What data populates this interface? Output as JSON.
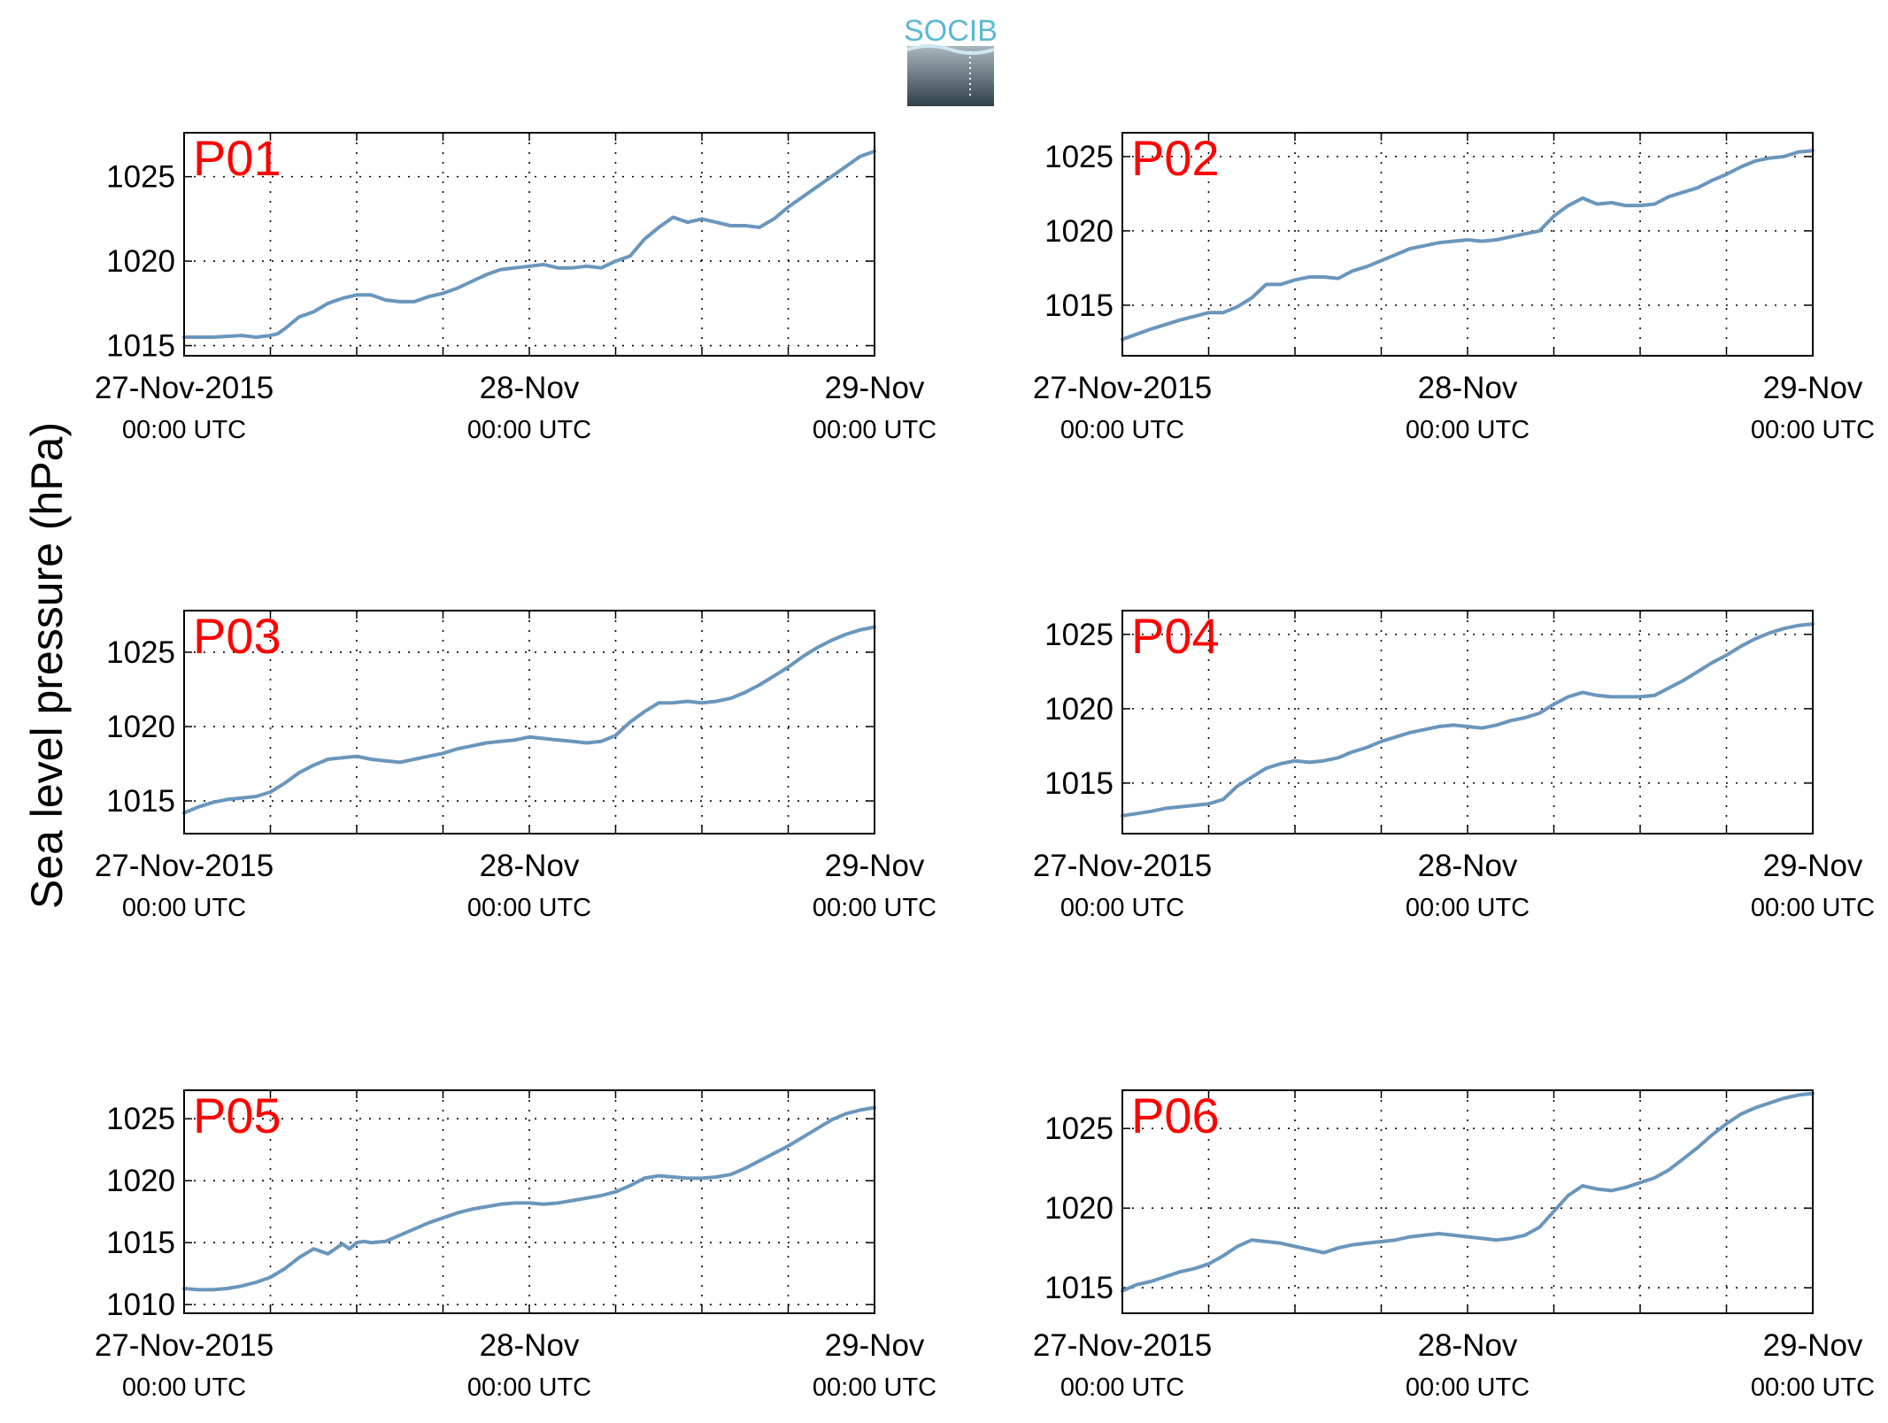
{
  "figure": {
    "ylabel": "Sea level pressure (hPa)",
    "logo_text": "SOCIB",
    "colors": {
      "line": "#6A96BC",
      "panel_label": "#FF0000",
      "axis": "#000000",
      "grid": "#000000",
      "logo_text": "#5BB8D4",
      "logo_top": "#A9B6BE",
      "logo_bottom": "#2F3F48"
    },
    "x_ticks": [
      {
        "x": 0,
        "date": "27-Nov-2015",
        "time": "00:00 UTC"
      },
      {
        "x": 24,
        "date": "28-Nov",
        "time": "00:00 UTC"
      },
      {
        "x": 48,
        "date": "29-Nov",
        "time": "00:00 UTC"
      }
    ],
    "x_minor_ticks": [
      6,
      12,
      18,
      30,
      36,
      42
    ]
  },
  "chart_data": [
    {
      "type": "line",
      "panel_label": "P01",
      "x_units": "hours since 27-Nov-2015 00:00 UTC",
      "xlim": [
        0,
        48
      ],
      "ylim": [
        1014.4,
        1027.6
      ],
      "yticks": [
        1015,
        1020,
        1025
      ],
      "series": [
        {
          "x": [
            0,
            2,
            4,
            5,
            6,
            6.5,
            7,
            8,
            9,
            10,
            11,
            12,
            13,
            14,
            15,
            16,
            17,
            18,
            19,
            20,
            21,
            22,
            23,
            24,
            25,
            26,
            27,
            28,
            29,
            30,
            31,
            32,
            33,
            34,
            35,
            36,
            37,
            38,
            39,
            40,
            41,
            42,
            43,
            44,
            45,
            46,
            47,
            48
          ],
          "values": [
            1015.5,
            1015.5,
            1015.6,
            1015.5,
            1015.6,
            1015.7,
            1016.0,
            1016.7,
            1017.0,
            1017.5,
            1017.8,
            1018.0,
            1018.0,
            1017.7,
            1017.6,
            1017.6,
            1017.9,
            1018.1,
            1018.4,
            1018.8,
            1019.2,
            1019.5,
            1019.6,
            1019.7,
            1019.8,
            1019.6,
            1019.6,
            1019.7,
            1019.6,
            1020.0,
            1020.3,
            1021.3,
            1022.0,
            1022.6,
            1022.3,
            1022.5,
            1022.3,
            1022.1,
            1022.1,
            1022.0,
            1022.5,
            1023.2,
            1023.8,
            1024.4,
            1025.0,
            1025.6,
            1026.2,
            1026.5
          ]
        }
      ]
    },
    {
      "type": "line",
      "panel_label": "P02",
      "x_units": "hours since 27-Nov-2015 00:00 UTC",
      "xlim": [
        0,
        48
      ],
      "ylim": [
        1011.6,
        1026.6
      ],
      "yticks": [
        1015,
        1020,
        1025
      ],
      "series": [
        {
          "x": [
            0,
            2,
            4,
            6,
            7,
            8,
            9,
            10,
            11,
            12,
            13,
            14,
            15,
            16,
            17,
            18,
            19,
            20,
            21,
            22,
            23,
            24,
            25,
            26,
            27,
            28,
            29,
            30,
            31,
            32,
            33,
            34,
            35,
            36,
            37,
            38,
            39,
            40,
            41,
            42,
            43,
            44,
            45,
            46,
            47,
            48
          ],
          "values": [
            1012.7,
            1013.4,
            1014.0,
            1014.5,
            1014.5,
            1014.9,
            1015.5,
            1016.4,
            1016.4,
            1016.7,
            1016.9,
            1016.9,
            1016.8,
            1017.3,
            1017.6,
            1018.0,
            1018.4,
            1018.8,
            1019.0,
            1019.2,
            1019.3,
            1019.4,
            1019.3,
            1019.4,
            1019.6,
            1019.8,
            1020.0,
            1021.0,
            1021.7,
            1022.2,
            1021.8,
            1021.9,
            1021.7,
            1021.7,
            1021.8,
            1022.3,
            1022.6,
            1022.9,
            1023.4,
            1023.8,
            1024.3,
            1024.7,
            1024.9,
            1025.0,
            1025.3,
            1025.4
          ]
        }
      ]
    },
    {
      "type": "line",
      "panel_label": "P03",
      "x_units": "hours since 27-Nov-2015 00:00 UTC",
      "xlim": [
        0,
        48
      ],
      "ylim": [
        1012.8,
        1027.8
      ],
      "yticks": [
        1015,
        1020,
        1025
      ],
      "series": [
        {
          "x": [
            0,
            1,
            2,
            3,
            4,
            5,
            6,
            7,
            8,
            9,
            10,
            11,
            12,
            13,
            14,
            15,
            16,
            17,
            18,
            19,
            20,
            21,
            22,
            23,
            24,
            25,
            26,
            27,
            28,
            29,
            30,
            31,
            32,
            33,
            34,
            35,
            36,
            37,
            38,
            39,
            40,
            41,
            42,
            43,
            44,
            45,
            46,
            47,
            48
          ],
          "values": [
            1014.2,
            1014.6,
            1014.9,
            1015.1,
            1015.2,
            1015.3,
            1015.6,
            1016.2,
            1016.9,
            1017.4,
            1017.8,
            1017.9,
            1018.0,
            1017.8,
            1017.7,
            1017.6,
            1017.8,
            1018.0,
            1018.2,
            1018.5,
            1018.7,
            1018.9,
            1019.0,
            1019.1,
            1019.3,
            1019.2,
            1019.1,
            1019.0,
            1018.9,
            1019.0,
            1019.4,
            1020.3,
            1021.0,
            1021.6,
            1021.6,
            1021.7,
            1021.6,
            1021.7,
            1021.9,
            1022.3,
            1022.8,
            1023.4,
            1024.0,
            1024.7,
            1025.3,
            1025.8,
            1026.2,
            1026.5,
            1026.7
          ]
        }
      ]
    },
    {
      "type": "line",
      "panel_label": "P04",
      "x_units": "hours since 27-Nov-2015 00:00 UTC",
      "xlim": [
        0,
        48
      ],
      "ylim": [
        1011.6,
        1026.6
      ],
      "yticks": [
        1015,
        1020,
        1025
      ],
      "series": [
        {
          "x": [
            0,
            2,
            3,
            4,
            6,
            7,
            8,
            9,
            10,
            11,
            12,
            13,
            14,
            15,
            16,
            17,
            18,
            19,
            20,
            21,
            22,
            23,
            24,
            25,
            26,
            27,
            28,
            29,
            30,
            31,
            32,
            33,
            34,
            35,
            36,
            37,
            38,
            39,
            40,
            41,
            42,
            43,
            44,
            45,
            46,
            47,
            48
          ],
          "values": [
            1012.8,
            1013.1,
            1013.3,
            1013.4,
            1013.6,
            1013.9,
            1014.8,
            1015.4,
            1016.0,
            1016.3,
            1016.5,
            1016.4,
            1016.5,
            1016.7,
            1017.1,
            1017.4,
            1017.8,
            1018.1,
            1018.4,
            1018.6,
            1018.8,
            1018.9,
            1018.8,
            1018.7,
            1018.9,
            1019.2,
            1019.4,
            1019.7,
            1020.3,
            1020.8,
            1021.1,
            1020.9,
            1020.8,
            1020.8,
            1020.8,
            1020.9,
            1021.4,
            1021.9,
            1022.5,
            1023.1,
            1023.6,
            1024.2,
            1024.7,
            1025.1,
            1025.4,
            1025.6,
            1025.7
          ]
        }
      ]
    },
    {
      "type": "line",
      "panel_label": "P05",
      "x_units": "hours since 27-Nov-2015 00:00 UTC",
      "xlim": [
        0,
        48
      ],
      "ylim": [
        1009.3,
        1027.3
      ],
      "yticks": [
        1010,
        1015,
        1020,
        1025
      ],
      "series": [
        {
          "x": [
            0,
            1,
            2,
            3,
            4,
            5,
            6,
            7,
            8,
            9,
            10,
            11,
            11.5,
            12,
            12.5,
            13,
            14,
            15,
            16,
            17,
            18,
            19,
            20,
            21,
            22,
            23,
            24,
            25,
            26,
            27,
            28,
            29,
            30,
            31,
            32,
            33,
            34,
            35,
            36,
            37,
            38,
            39,
            40,
            41,
            42,
            43,
            44,
            45,
            46,
            47,
            48
          ],
          "values": [
            1011.3,
            1011.2,
            1011.2,
            1011.3,
            1011.5,
            1011.8,
            1012.2,
            1012.9,
            1013.8,
            1014.5,
            1014.1,
            1014.9,
            1014.5,
            1015.0,
            1015.1,
            1015.0,
            1015.1,
            1015.6,
            1016.1,
            1016.6,
            1017.0,
            1017.4,
            1017.7,
            1017.9,
            1018.1,
            1018.2,
            1018.2,
            1018.1,
            1018.2,
            1018.4,
            1018.6,
            1018.8,
            1019.1,
            1019.6,
            1020.2,
            1020.4,
            1020.3,
            1020.2,
            1020.2,
            1020.3,
            1020.5,
            1021.0,
            1021.6,
            1022.2,
            1022.8,
            1023.5,
            1024.2,
            1024.9,
            1025.4,
            1025.7,
            1025.9
          ]
        }
      ]
    },
    {
      "type": "line",
      "panel_label": "P06",
      "x_units": "hours since 27-Nov-2015 00:00 UTC",
      "xlim": [
        0,
        48
      ],
      "ylim": [
        1013.4,
        1027.4
      ],
      "yticks": [
        1015,
        1020,
        1025
      ],
      "series": [
        {
          "x": [
            0,
            1,
            2,
            3,
            4,
            5,
            6,
            7,
            8,
            9,
            10,
            11,
            12,
            13,
            14,
            15,
            16,
            17,
            18,
            19,
            20,
            21,
            22,
            23,
            24,
            25,
            26,
            27,
            28,
            29,
            30,
            31,
            32,
            33,
            34,
            35,
            36,
            37,
            38,
            39,
            40,
            41,
            42,
            43,
            44,
            45,
            46,
            47,
            48
          ],
          "values": [
            1014.8,
            1015.2,
            1015.4,
            1015.7,
            1016.0,
            1016.2,
            1016.5,
            1017.0,
            1017.6,
            1018.0,
            1017.9,
            1017.8,
            1017.6,
            1017.4,
            1017.2,
            1017.5,
            1017.7,
            1017.8,
            1017.9,
            1018.0,
            1018.2,
            1018.3,
            1018.4,
            1018.3,
            1018.2,
            1018.1,
            1018.0,
            1018.1,
            1018.3,
            1018.8,
            1019.8,
            1020.8,
            1021.4,
            1021.2,
            1021.1,
            1021.3,
            1021.6,
            1021.9,
            1022.4,
            1023.1,
            1023.8,
            1024.6,
            1025.3,
            1025.9,
            1026.3,
            1026.6,
            1026.9,
            1027.1,
            1027.2
          ]
        }
      ]
    }
  ]
}
